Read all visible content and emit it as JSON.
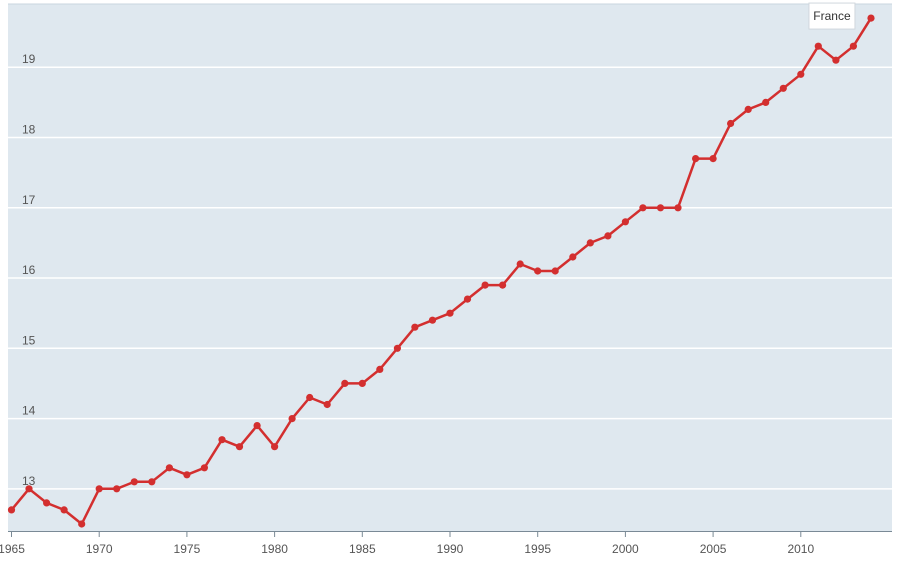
{
  "chart_data": {
    "type": "line",
    "title": "",
    "xlabel": "",
    "ylabel": "",
    "x": [
      1965,
      1966,
      1967,
      1968,
      1969,
      1970,
      1971,
      1972,
      1973,
      1974,
      1975,
      1976,
      1977,
      1978,
      1979,
      1980,
      1981,
      1982,
      1983,
      1984,
      1985,
      1986,
      1987,
      1988,
      1989,
      1990,
      1991,
      1992,
      1993,
      1994,
      1995,
      1996,
      1997,
      1998,
      1999,
      2000,
      2001,
      2002,
      2003,
      2004,
      2005,
      2006,
      2007,
      2008,
      2009,
      2010,
      2011,
      2012,
      2013,
      2014
    ],
    "series": [
      {
        "name": "France",
        "color": "#d32f2f",
        "values": [
          12.7,
          13.0,
          12.8,
          12.7,
          12.5,
          13.0,
          13.0,
          13.1,
          13.1,
          13.3,
          13.2,
          13.3,
          13.7,
          13.6,
          13.9,
          13.6,
          14.0,
          14.3,
          14.2,
          14.5,
          14.5,
          14.7,
          15.0,
          15.3,
          15.4,
          15.5,
          15.7,
          15.9,
          15.9,
          16.2,
          16.1,
          16.1,
          16.3,
          16.5,
          16.6,
          16.8,
          17.0,
          17.0,
          17.0,
          17.7,
          17.7,
          18.2,
          18.4,
          18.5,
          18.7,
          18.9,
          19.3,
          19.1,
          19.3,
          19.7
        ]
      }
    ],
    "xticks": [
      1965,
      1970,
      1975,
      1980,
      1985,
      1990,
      1995,
      2000,
      2005,
      2010
    ],
    "yticks": [
      13,
      14,
      15,
      16,
      17,
      18,
      19
    ],
    "xlim": [
      1964.8,
      2015.2
    ],
    "ylim": [
      12.4,
      19.9
    ],
    "grid": true,
    "grid_color": "#ffffff",
    "plot_background": "#dfe8ef",
    "legend": "top-right"
  }
}
